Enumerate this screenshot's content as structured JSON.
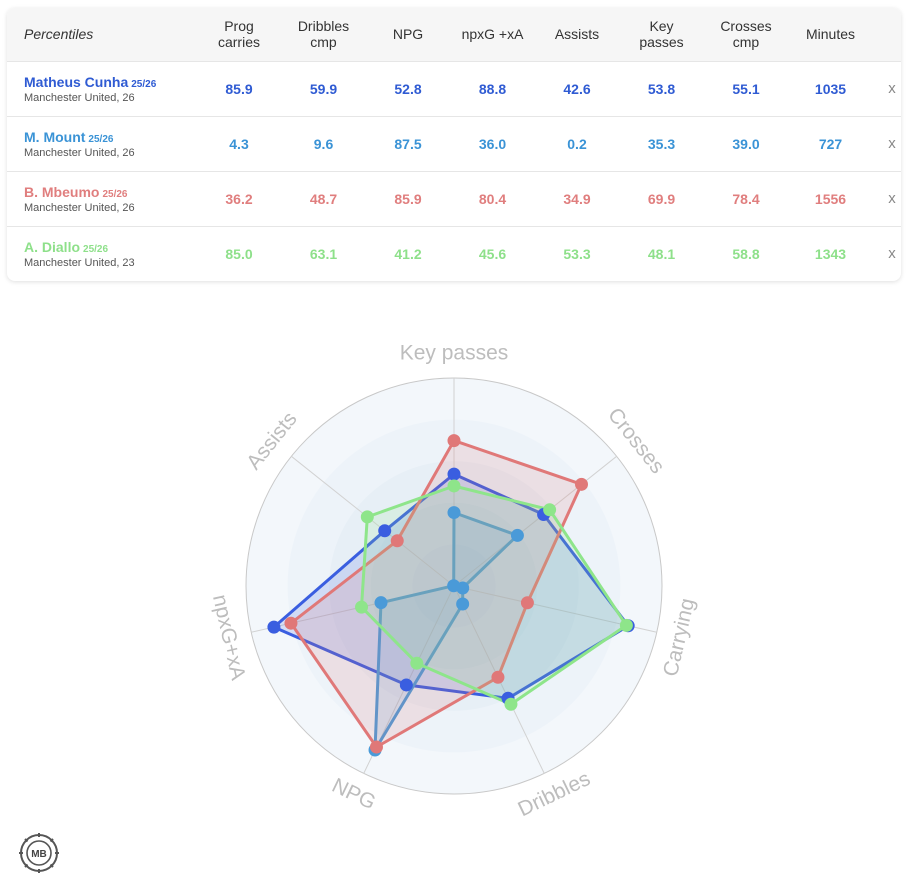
{
  "table": {
    "header": {
      "first": "Percentiles",
      "columns": [
        [
          "Prog",
          "carries"
        ],
        [
          "Dribbles",
          "cmp"
        ],
        [
          "NPG"
        ],
        [
          "npxG +xA"
        ],
        [
          "Assists"
        ],
        [
          "Key",
          "passes"
        ],
        [
          "Crosses",
          "cmp"
        ],
        [
          "Minutes"
        ]
      ]
    },
    "remove_label": "x",
    "rows": [
      {
        "name": "Matheus Cunha",
        "season": "25/26",
        "team": "Manchester United, 26",
        "color": "#2f5bd3",
        "values": [
          "85.9",
          "59.9",
          "52.8",
          "88.8",
          "42.6",
          "53.8",
          "55.1",
          "1035"
        ]
      },
      {
        "name": "M. Mount",
        "season": "25/26",
        "team": "Manchester United, 26",
        "color": "#3a93d6",
        "values": [
          "4.3",
          "9.6",
          "87.5",
          "36.0",
          "0.2",
          "35.3",
          "39.0",
          "727"
        ]
      },
      {
        "name": "B. Mbeumo",
        "season": "25/26",
        "team": "Manchester United, 26",
        "color": "#e07e7e",
        "values": [
          "36.2",
          "48.7",
          "85.9",
          "80.4",
          "34.9",
          "69.9",
          "78.4",
          "1556"
        ]
      },
      {
        "name": "A. Diallo",
        "season": "25/26",
        "team": "Manchester United, 23",
        "color": "#8ee08a",
        "values": [
          "85.0",
          "63.1",
          "41.2",
          "45.6",
          "53.3",
          "48.1",
          "58.8",
          "1343"
        ]
      }
    ]
  },
  "chart_data": {
    "type": "radar",
    "axes": [
      "Key passes",
      "Crosses",
      "Carrying",
      "Dribbles",
      "NPG",
      "npxG+xA",
      "Assists"
    ],
    "range": [
      0,
      100
    ],
    "series": [
      {
        "name": "Matheus Cunha",
        "color": "#3a5ee0",
        "values": [
          53.8,
          55.1,
          85.9,
          59.9,
          52.8,
          88.8,
          42.6
        ]
      },
      {
        "name": "M. Mount",
        "color": "#4a9ad8",
        "values": [
          35.3,
          39.0,
          4.3,
          9.6,
          87.5,
          36.0,
          0.2
        ]
      },
      {
        "name": "B. Mbeumo",
        "color": "#e07878",
        "values": [
          69.9,
          78.4,
          36.2,
          48.7,
          85.9,
          80.4,
          34.9
        ]
      },
      {
        "name": "A. Diallo",
        "color": "#8ee58a",
        "values": [
          48.1,
          58.8,
          85.0,
          63.1,
          41.2,
          45.6,
          53.3
        ]
      }
    ]
  },
  "logo": {
    "text": "MB"
  }
}
